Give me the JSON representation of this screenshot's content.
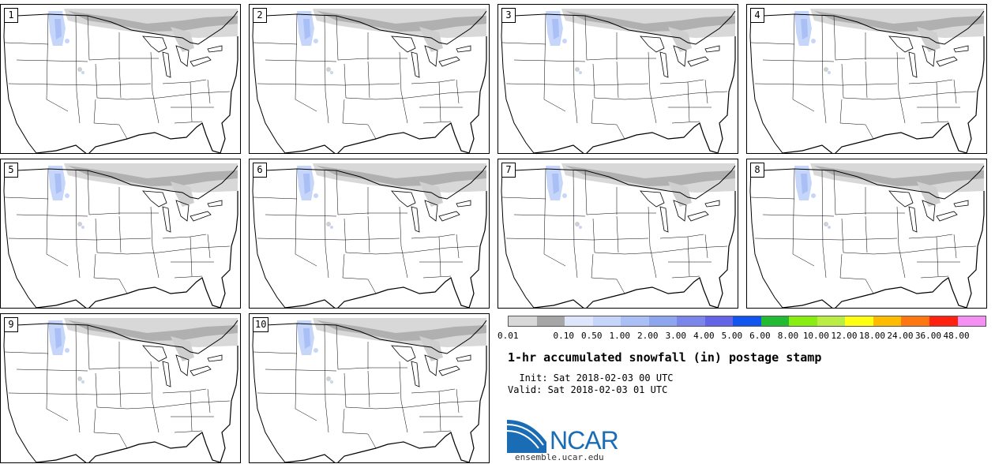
{
  "panels": [
    {
      "member": "1"
    },
    {
      "member": "2"
    },
    {
      "member": "3"
    },
    {
      "member": "4"
    },
    {
      "member": "5"
    },
    {
      "member": "6"
    },
    {
      "member": "7"
    },
    {
      "member": "8"
    },
    {
      "member": "9"
    },
    {
      "member": "10"
    }
  ],
  "legend": {
    "labels": [
      "0.01",
      "0.10",
      "0.50",
      "1.00",
      "2.00",
      "3.00",
      "4.00",
      "5.00",
      "6.00",
      "8.00",
      "10.00",
      "12.00",
      "18.00",
      "24.00",
      "36.00",
      "48.00"
    ],
    "colors": [
      "#d8d8d8",
      "#a6a6a6",
      "#dde6fa",
      "#c6d6fa",
      "#a9bff6",
      "#8ea6f0",
      "#7a86ea",
      "#6464e8",
      "#1155ee",
      "#22bb33",
      "#88ee11",
      "#bbee44",
      "#ffff11",
      "#ffbb00",
      "#ff7711",
      "#ff2211",
      "#f490f4"
    ]
  },
  "title": "1-hr accumulated snowfall (in) postage stamp",
  "init_line": "  Init: Sat 2018-02-03 00 UTC",
  "valid_line": "Valid: Sat 2018-02-03 01 UTC",
  "logo_text": "NCAR",
  "website": "ensemble.ucar.edu"
}
